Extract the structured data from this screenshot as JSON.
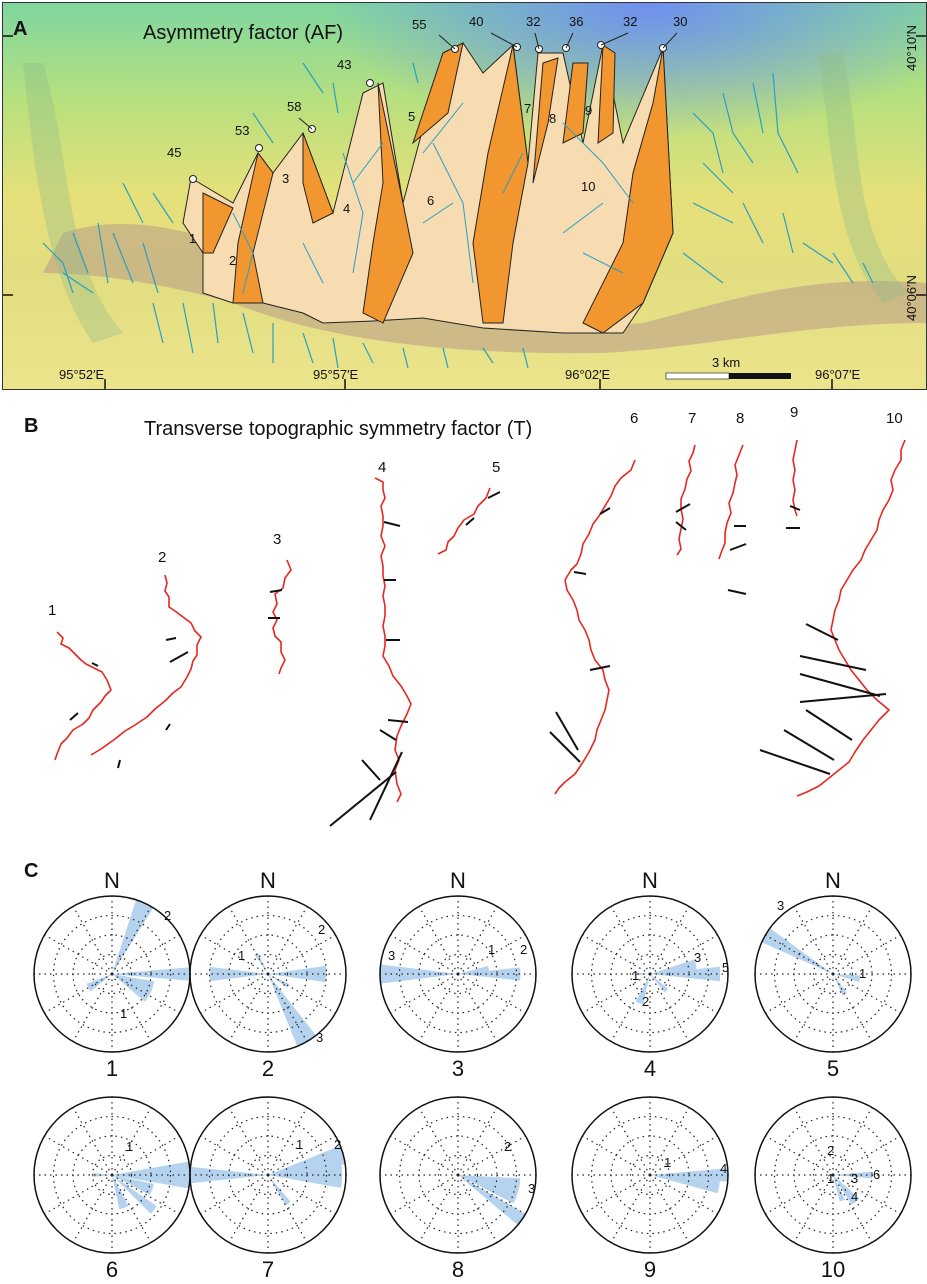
{
  "figure": {
    "panel_a": {
      "letter": "A",
      "title": "Asymmetry factor (AF)",
      "coords": {
        "lon1": "95°52′E",
        "lon2": "95°57′E",
        "lon3": "96°02′E",
        "lon4": "96°07′E",
        "lat1": "40°10′N",
        "lat2": "40°06′N"
      },
      "scale_label": "3 km",
      "basins": [
        {
          "id": "1",
          "af": "45"
        },
        {
          "id": "2",
          "af": "53"
        },
        {
          "id": "3",
          "af": "58"
        },
        {
          "id": "4",
          "af": "43"
        },
        {
          "id": "5",
          "af": "55"
        },
        {
          "id": "6",
          "af": "40"
        },
        {
          "id": "7",
          "af": "32"
        },
        {
          "id": "8",
          "af": "36"
        },
        {
          "id": "9",
          "af": "32"
        },
        {
          "id": "10",
          "af": "30"
        }
      ]
    },
    "panel_b": {
      "letter": "B",
      "title": "Transverse topographic symmetry factor (T)",
      "basin_labels": [
        "1",
        "2",
        "3",
        "4",
        "5",
        "6",
        "7",
        "8",
        "9",
        "10"
      ]
    },
    "panel_c": {
      "letter": "C",
      "north_label": "N",
      "roses": [
        {
          "id": "1",
          "labels": [
            "2",
            "1"
          ]
        },
        {
          "id": "2",
          "labels": [
            "2",
            "1",
            "3"
          ]
        },
        {
          "id": "3",
          "labels": [
            "3",
            "1",
            "2"
          ]
        },
        {
          "id": "4",
          "labels": [
            "3",
            "5",
            "1",
            "2"
          ]
        },
        {
          "id": "5",
          "labels": [
            "3",
            "1"
          ]
        },
        {
          "id": "6",
          "labels": [
            "1"
          ]
        },
        {
          "id": "7",
          "labels": [
            "1",
            "2"
          ]
        },
        {
          "id": "8",
          "labels": [
            "2",
            "3"
          ]
        },
        {
          "id": "9",
          "labels": [
            "1",
            "4"
          ]
        },
        {
          "id": "10",
          "labels": [
            "2",
            "1",
            "3",
            "6",
            "4"
          ]
        }
      ]
    }
  }
}
